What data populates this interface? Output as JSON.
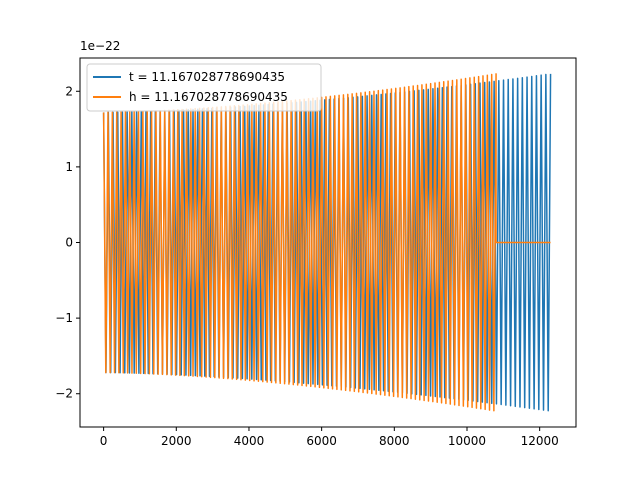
{
  "chart_data": {
    "type": "line",
    "offset_text": "1e−22",
    "x_ticks": [
      0,
      2000,
      4000,
      6000,
      8000,
      10000,
      12000
    ],
    "x_tick_labels": [
      "0",
      "2000",
      "4000",
      "6000",
      "8000",
      "10000",
      "12000"
    ],
    "y_ticks": [
      -2,
      -1,
      0,
      1,
      2
    ],
    "y_tick_labels": [
      "−2",
      "−1",
      "0",
      "1",
      "2"
    ],
    "xlim": [
      -650,
      13000
    ],
    "ylim": [
      -2.44,
      2.44
    ],
    "grid": false,
    "legend_position": "top-left",
    "series": [
      {
        "name": "t = 11.167028778690435",
        "color": "#1f77b4",
        "x_start": 0,
        "x_end": 12300,
        "amp_start": 1.72,
        "amp_end": 2.23,
        "oscillation_cycles": 95
      },
      {
        "name": "h = 11.167028778690435",
        "color": "#ff7f0e",
        "x_start": 0,
        "x_end": 10800,
        "zero_x_end": 12300,
        "amp_start": 1.72,
        "amp_end": 2.23,
        "oscillation_cycles": 90
      }
    ]
  }
}
